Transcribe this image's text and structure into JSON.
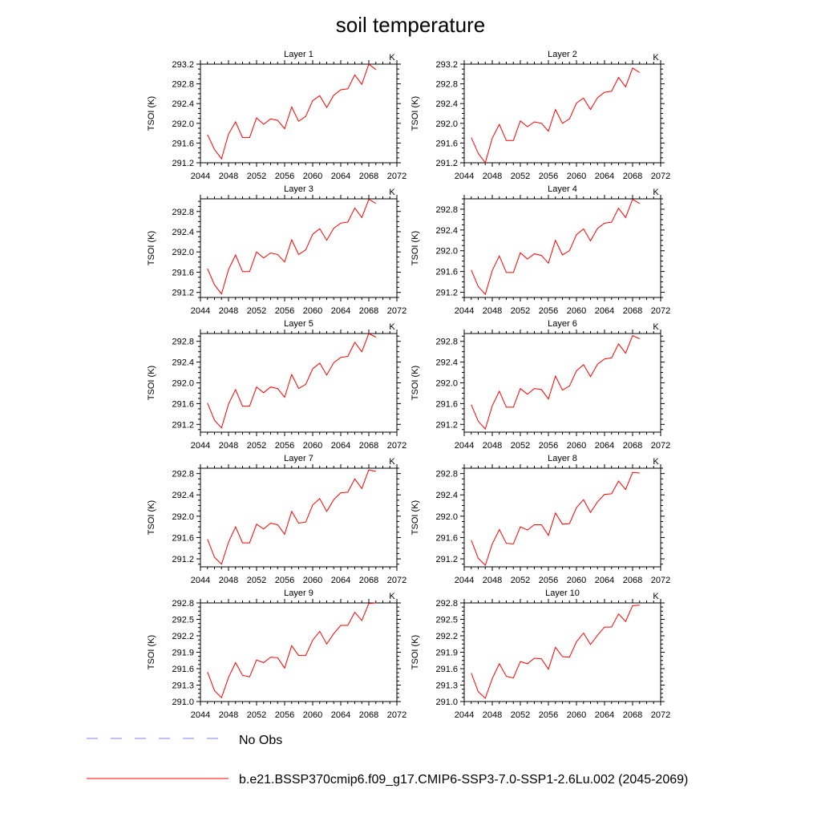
{
  "title": "soil temperature",
  "colors": {
    "model": "#ff0000",
    "obs": "#8080ff"
  },
  "chart_data": {
    "type": "line",
    "title": "soil temperature",
    "xlim": [
      2044,
      2072
    ],
    "x_ticks": [
      "2044",
      "2048",
      "2052",
      "2056",
      "2060",
      "2064",
      "2068",
      "2072"
    ],
    "x": [
      2045,
      2046,
      2047,
      2048,
      2049,
      2050,
      2051,
      2052,
      2053,
      2054,
      2055,
      2056,
      2057,
      2058,
      2059,
      2060,
      2061,
      2062,
      2063,
      2064,
      2065,
      2066,
      2067,
      2068,
      2069
    ],
    "legend": [
      {
        "label": "No Obs",
        "style": "dashed",
        "color": "#8080ff"
      },
      {
        "label": "b.e21.BSSP370cmip6.f09_g17.CMIP6-SSP3-7.0-SSP1-2.6Lu.002 (2045-2069)",
        "style": "solid",
        "color": "#ff0000"
      }
    ],
    "panels": [
      {
        "title": "Layer 1",
        "units": "K",
        "ylabel": "TSOI  (K)",
        "ylim": [
          291.2,
          293.2
        ],
        "y_ticks": [
          "291.2",
          "291.6",
          "292.0",
          "292.4",
          "292.8",
          "293.2"
        ],
        "series": [
          {
            "name": "b.e21.BSSP370cmip6.f09_g17.CMIP6-SSP3-7.0-SSP1-2.6Lu.002 (2045-2069)",
            "values": [
              291.77,
              291.47,
              291.28,
              291.78,
              292.03,
              291.71,
              291.71,
              292.11,
              291.98,
              292.09,
              292.06,
              291.89,
              292.33,
              292.04,
              292.14,
              292.46,
              292.56,
              292.32,
              292.57,
              292.68,
              292.7,
              292.98,
              292.79,
              293.2,
              293.09
            ]
          }
        ]
      },
      {
        "title": "Layer 2",
        "units": "K",
        "ylabel": "TSOI  (K)",
        "ylim": [
          291.2,
          293.2
        ],
        "y_ticks": [
          "291.2",
          "291.6",
          "292.0",
          "292.4",
          "292.8",
          "293.2"
        ],
        "series": [
          {
            "name": "b.e21.BSSP370cmip6.f09_g17.CMIP6-SSP3-7.0-SSP1-2.6Lu.002 (2045-2069)",
            "values": [
              291.71,
              291.39,
              291.2,
              291.7,
              291.98,
              291.65,
              291.65,
              292.05,
              291.93,
              292.03,
              292.0,
              291.84,
              292.28,
              292.0,
              292.09,
              292.41,
              292.51,
              292.28,
              292.52,
              292.63,
              292.65,
              292.93,
              292.74,
              293.12,
              293.03
            ]
          }
        ]
      },
      {
        "title": "Layer 3",
        "units": "K",
        "ylabel": "TSOI  (K)",
        "ylim": [
          291.1,
          293.05
        ],
        "y_ticks": [
          "291.2",
          "291.6",
          "292.0",
          "292.4",
          "292.8"
        ],
        "series": [
          {
            "name": "b.e21.BSSP370cmip6.f09_g17.CMIP6-SSP3-7.0-SSP1-2.6Lu.002 (2045-2069)",
            "values": [
              291.67,
              291.35,
              291.17,
              291.65,
              291.94,
              291.61,
              291.61,
              292.0,
              291.88,
              291.98,
              291.95,
              291.8,
              292.24,
              291.95,
              292.04,
              292.35,
              292.46,
              292.23,
              292.47,
              292.57,
              292.59,
              292.87,
              292.68,
              293.04,
              292.96
            ]
          }
        ]
      },
      {
        "title": "Layer 4",
        "units": "K",
        "ylabel": "TSOI  (K)",
        "ylim": [
          291.1,
          293.0
        ],
        "y_ticks": [
          "291.2",
          "291.6",
          "292.0",
          "292.4",
          "292.8"
        ],
        "series": [
          {
            "name": "b.e21.BSSP370cmip6.f09_g17.CMIP6-SSP3-7.0-SSP1-2.6Lu.002 (2045-2069)",
            "values": [
              291.63,
              291.31,
              291.16,
              291.62,
              291.9,
              291.58,
              291.58,
              291.96,
              291.84,
              291.94,
              291.91,
              291.76,
              292.2,
              291.92,
              292.0,
              292.31,
              292.42,
              292.19,
              292.43,
              292.53,
              292.55,
              292.82,
              292.64,
              292.99,
              292.91
            ]
          }
        ]
      },
      {
        "title": "Layer 5",
        "units": "K",
        "ylabel": "TSOI  (K)",
        "ylim": [
          291.05,
          292.95
        ],
        "y_ticks": [
          "291.2",
          "291.6",
          "292.0",
          "292.4",
          "292.8"
        ],
        "series": [
          {
            "name": "b.e21.BSSP370cmip6.f09_g17.CMIP6-SSP3-7.0-SSP1-2.6Lu.002 (2045-2069)",
            "values": [
              291.61,
              291.28,
              291.13,
              291.59,
              291.87,
              291.55,
              291.55,
              291.92,
              291.81,
              291.92,
              291.89,
              291.72,
              292.16,
              291.89,
              291.97,
              292.27,
              292.38,
              292.15,
              292.39,
              292.49,
              292.51,
              292.78,
              292.6,
              292.95,
              292.88
            ]
          }
        ]
      },
      {
        "title": "Layer 6",
        "units": "K",
        "ylabel": "TSOI  (K)",
        "ylim": [
          291.05,
          292.95
        ],
        "y_ticks": [
          "291.2",
          "291.6",
          "292.0",
          "292.4",
          "292.8"
        ],
        "series": [
          {
            "name": "b.e21.BSSP370cmip6.f09_g17.CMIP6-SSP3-7.0-SSP1-2.6Lu.002 (2045-2069)",
            "values": [
              291.58,
              291.26,
              291.11,
              291.56,
              291.84,
              291.53,
              291.53,
              291.89,
              291.78,
              291.89,
              291.87,
              291.69,
              292.13,
              291.86,
              291.94,
              292.23,
              292.35,
              292.12,
              292.36,
              292.46,
              292.48,
              292.75,
              292.57,
              292.91,
              292.85
            ]
          }
        ]
      },
      {
        "title": "Layer 7",
        "units": "K",
        "ylabel": "TSOI  (K)",
        "ylim": [
          291.05,
          292.9
        ],
        "y_ticks": [
          "291.2",
          "291.6",
          "292.0",
          "292.4",
          "292.8"
        ],
        "series": [
          {
            "name": "b.e21.BSSP370cmip6.f09_g17.CMIP6-SSP3-7.0-SSP1-2.6Lu.002 (2045-2069)",
            "values": [
              291.57,
              291.23,
              291.1,
              291.51,
              291.8,
              291.5,
              291.5,
              291.85,
              291.76,
              291.87,
              291.84,
              291.66,
              292.09,
              291.87,
              291.89,
              292.21,
              292.33,
              292.09,
              292.31,
              292.44,
              292.45,
              292.7,
              292.52,
              292.87,
              292.84
            ]
          }
        ]
      },
      {
        "title": "Layer 8",
        "units": "K",
        "ylabel": "TSOI  (K)",
        "ylim": [
          291.05,
          292.9
        ],
        "y_ticks": [
          "291.2",
          "291.6",
          "292.0",
          "292.4",
          "292.8"
        ],
        "series": [
          {
            "name": "b.e21.BSSP370cmip6.f09_g17.CMIP6-SSP3-7.0-SSP1-2.6Lu.002 (2045-2069)",
            "values": [
              291.55,
              291.21,
              291.08,
              291.48,
              291.75,
              291.49,
              291.48,
              291.8,
              291.74,
              291.84,
              291.84,
              291.64,
              292.06,
              291.85,
              291.86,
              292.16,
              292.31,
              292.07,
              292.27,
              292.41,
              292.42,
              292.66,
              292.5,
              292.82,
              292.81
            ]
          }
        ]
      },
      {
        "title": "Layer 9",
        "units": "K",
        "ylabel": "TSOI  (K)",
        "ylim": [
          291.0,
          292.8
        ],
        "y_ticks": [
          "291.0",
          "291.3",
          "291.6",
          "291.9",
          "292.2",
          "292.5",
          "292.8"
        ],
        "series": [
          {
            "name": "b.e21.BSSP370cmip6.f09_g17.CMIP6-SSP3-7.0-SSP1-2.6Lu.002 (2045-2069)",
            "values": [
              291.54,
              291.2,
              291.07,
              291.44,
              291.71,
              291.48,
              291.45,
              291.76,
              291.71,
              291.81,
              291.8,
              291.61,
              292.02,
              291.84,
              291.84,
              292.12,
              292.28,
              292.05,
              292.24,
              292.39,
              292.39,
              292.63,
              292.48,
              292.79,
              292.8
            ]
          }
        ]
      },
      {
        "title": "Layer 10",
        "units": "K",
        "ylabel": "TSOI  (K)",
        "ylim": [
          291.0,
          292.8
        ],
        "y_ticks": [
          "291.0",
          "291.3",
          "291.6",
          "291.9",
          "292.2",
          "292.5",
          "292.8"
        ],
        "series": [
          {
            "name": "b.e21.BSSP370cmip6.f09_g17.CMIP6-SSP3-7.0-SSP1-2.6Lu.002 (2045-2069)",
            "values": [
              291.52,
              291.18,
              291.06,
              291.42,
              291.69,
              291.46,
              291.43,
              291.73,
              291.69,
              291.79,
              291.78,
              291.59,
              291.99,
              291.82,
              291.81,
              292.09,
              292.25,
              292.04,
              292.21,
              292.36,
              292.36,
              292.6,
              292.46,
              292.75,
              292.76
            ]
          }
        ]
      }
    ]
  }
}
